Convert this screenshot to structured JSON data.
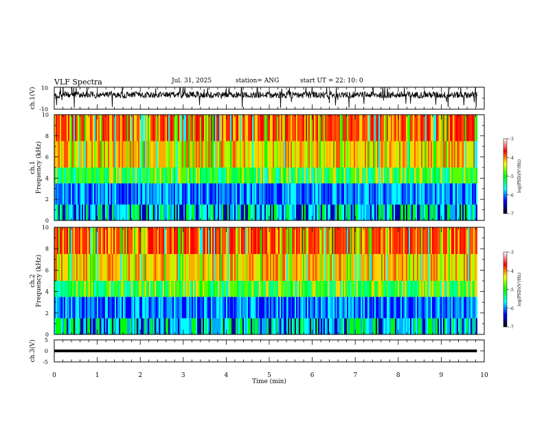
{
  "header": {
    "title": "VLF Spectra",
    "date": "Jul. 31, 2025",
    "station": "station= ANG",
    "start_ut": "start UT =  22: 10: 0"
  },
  "chart_data": [
    {
      "type": "line",
      "panel": "ch1-waveform",
      "ylabel": "ch.1(V)",
      "ylim": [
        -10,
        10
      ],
      "ytick_labels": [
        "10",
        "-10"
      ],
      "xlim": [
        0,
        10
      ],
      "mean_value": 3,
      "series": [
        {
          "values_description": "noisy waveform around mean_value with spikes"
        }
      ]
    },
    {
      "type": "heatmap",
      "panel": "ch1-spectrogram",
      "ylabel": "Frequency (kHz)",
      "channel_label": "ch.1",
      "ylim": [
        0,
        10
      ],
      "ytick_labels": [
        "0",
        "2",
        "4",
        "6",
        "8",
        "10"
      ],
      "xlim": [
        0,
        10
      ],
      "data_end_min": 9.83,
      "colorbar": {
        "label": "log(PSD)(V²/Hz)",
        "range": [
          -7,
          -3
        ],
        "tick_labels": [
          "-3",
          "-4",
          "-5",
          "-6",
          "-7"
        ],
        "colors": [
          "#000000",
          "#0000ff",
          "#00ffff",
          "#00ff00",
          "#ffff00",
          "#ff0000",
          "#ffffff"
        ]
      }
    },
    {
      "type": "heatmap",
      "panel": "ch2-spectrogram",
      "ylabel": "Frequency (kHz)",
      "channel_label": "ch.2",
      "ylim": [
        0,
        10
      ],
      "ytick_labels": [
        "0",
        "2",
        "4",
        "6",
        "8",
        "10"
      ],
      "xlim": [
        0,
        10
      ],
      "data_end_min": 9.83,
      "colorbar": {
        "label": "log(PSD)(V²/Hz)",
        "range": [
          -7,
          -3
        ],
        "tick_labels": [
          "-3",
          "-4",
          "-5",
          "-6",
          "-7"
        ],
        "colors": [
          "#000000",
          "#0000ff",
          "#00ffff",
          "#00ff00",
          "#ffff00",
          "#ff0000",
          "#ffffff"
        ]
      }
    },
    {
      "type": "line",
      "panel": "ch3-waveform",
      "ylabel": "ch.3(V)",
      "ylim": [
        -5,
        5
      ],
      "ytick_labels": [
        "5",
        "0",
        "-5"
      ],
      "xlim": [
        0,
        10
      ],
      "series": [
        {
          "values": [
            {
              "x": 0,
              "y": 0
            },
            {
              "x": 9.83,
              "y": 0
            }
          ]
        }
      ]
    }
  ],
  "x_axis": {
    "label": "Time (min)",
    "tick_labels": [
      "0",
      "1",
      "2",
      "3",
      "4",
      "5",
      "6",
      "7",
      "8",
      "9",
      "10"
    ],
    "range": [
      0,
      10
    ]
  }
}
